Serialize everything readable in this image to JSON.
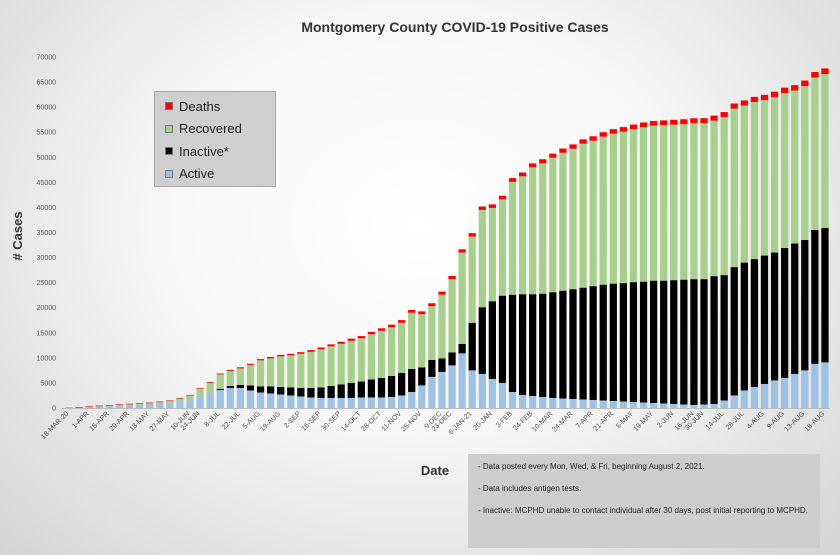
{
  "chart_data": {
    "type": "bar",
    "stacked": true,
    "title": "Montgomery County COVID-19 Positive Cases",
    "xlabel": "Date",
    "ylabel": "# Cases",
    "ylim": [
      0,
      70000
    ],
    "yticks": [
      0,
      5000,
      10000,
      15000,
      20000,
      25000,
      30000,
      35000,
      40000,
      45000,
      50000,
      55000,
      60000,
      65000,
      70000
    ],
    "grid": false,
    "legend_position": "upper-left",
    "x_tick_labels": [
      "18-MAR-20",
      "1-APR",
      "15-APR",
      "29-APR",
      "13-MAY",
      "27-MAY",
      "10-JUN",
      "24-JUN",
      "8-JUL",
      "22-JUL",
      "5-AUG",
      "19-AUG",
      "2-SEP",
      "16-SEP",
      "30-SEP",
      "14-OCT",
      "28-OCT",
      "11-NOV",
      "25-NOV",
      "9-DEC",
      "23-DEC",
      "6-JAN-21",
      "20-JAN",
      "3-FEB",
      "24-FEB",
      "10-MAR",
      "24-MAR",
      "7-APR",
      "21-APR",
      "5-MAY",
      "19-MAY",
      "2-JUN",
      "16-JUN",
      "30-JUN",
      "14-JUL",
      "28-JUL",
      "4-AUG",
      "9-AUG",
      "13-AUG",
      "18-AUG"
    ],
    "series": [
      {
        "name": "Active",
        "color": "#9ec2e6",
        "values": [
          50,
          150,
          250,
          400,
          450,
          550,
          600,
          650,
          700,
          800,
          900,
          1200,
          1500,
          2300,
          2800,
          3600,
          4000,
          4000,
          3500,
          3100,
          2900,
          2700,
          2500,
          2300,
          2100,
          2000,
          2000,
          2000,
          2000,
          2100,
          2100,
          2100,
          2200,
          2500,
          3200,
          4500,
          6200,
          7200,
          8500,
          10900,
          7500,
          6800,
          5800,
          5000,
          3200,
          2600,
          2400,
          2200,
          2000,
          1900,
          1800,
          1700,
          1600,
          1500,
          1400,
          1300,
          1200,
          1100,
          1000,
          900,
          800,
          700,
          600,
          700,
          800,
          1500,
          2500,
          3500,
          4200,
          4800,
          5500,
          6000,
          6800,
          7500,
          8800,
          9100
        ]
      },
      {
        "name": "Inactive*",
        "color": "#000000",
        "values": [
          0,
          0,
          0,
          0,
          0,
          0,
          0,
          0,
          0,
          0,
          0,
          0,
          0,
          0,
          0,
          200,
          400,
          600,
          1000,
          1200,
          1400,
          1500,
          1600,
          1700,
          1900,
          2100,
          2400,
          2700,
          3000,
          3200,
          3600,
          3900,
          4200,
          4500,
          4600,
          3600,
          3400,
          2700,
          2600,
          1900,
          9500,
          13300,
          15500,
          17400,
          19400,
          20100,
          20300,
          20600,
          21100,
          21500,
          21900,
          22300,
          22700,
          23100,
          23400,
          23600,
          23900,
          24100,
          24400,
          24500,
          24700,
          24900,
          25100,
          25000,
          25500,
          25000,
          25600,
          25500,
          25500,
          25600,
          25500,
          25900,
          26000,
          26000,
          26700,
          26800
        ]
      },
      {
        "name": "Recovered",
        "color": "#a8d08d",
        "values": [
          0,
          0,
          50,
          50,
          100,
          150,
          200,
          250,
          300,
          400,
          500,
          700,
          1000,
          1500,
          2200,
          2900,
          3000,
          3300,
          4100,
          5200,
          5600,
          6100,
          6400,
          6800,
          7200,
          7600,
          7900,
          8100,
          8400,
          8600,
          9000,
          9400,
          9700,
          10000,
          11200,
          10600,
          10700,
          12700,
          14600,
          18200,
          17200,
          19400,
          18600,
          19200,
          22500,
          23500,
          25300,
          26000,
          26800,
          27500,
          28000,
          28700,
          29000,
          29500,
          29900,
          30200,
          30500,
          30800,
          30900,
          31000,
          31000,
          31000,
          31100,
          31100,
          31000,
          31500,
          31600,
          31300,
          31300,
          31000,
          31000,
          30900,
          30500,
          30700,
          30400,
          30700
        ]
      },
      {
        "name": "Deaths",
        "color": "#ff0000",
        "values": [
          5,
          10,
          20,
          30,
          40,
          50,
          60,
          70,
          80,
          90,
          100,
          110,
          120,
          130,
          150,
          170,
          190,
          210,
          230,
          250,
          270,
          290,
          310,
          330,
          350,
          370,
          390,
          410,
          430,
          450,
          470,
          490,
          510,
          530,
          550,
          570,
          590,
          610,
          630,
          650,
          670,
          690,
          710,
          730,
          750,
          770,
          790,
          810,
          830,
          850,
          870,
          880,
          890,
          900,
          910,
          920,
          930,
          940,
          950,
          960,
          970,
          980,
          990,
          1000,
          1010,
          1020,
          1030,
          1040,
          1050,
          1060,
          1070,
          1080,
          1090,
          1100,
          1110,
          1120
        ]
      }
    ]
  },
  "notes": [
    "- Data posted every Mon, Wed, & Fri, beginning August 2, 2021.",
    "- Data includes antigen tests.",
    "- Inactive: MCPHD unable to contact individual after 30 days, post initial reporting to MCPHD."
  ]
}
